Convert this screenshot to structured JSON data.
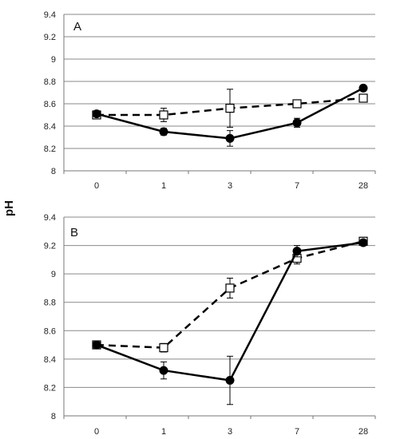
{
  "ylabel": "pH",
  "chart_data": [
    {
      "type": "line",
      "panel_label": "A",
      "categories": [
        "0",
        "1",
        "3",
        "7",
        "28"
      ],
      "ylim": [
        8,
        9.4
      ],
      "yticks": [
        "8",
        "8.2",
        "8.4",
        "8.6",
        "8.8",
        "9",
        "9.2",
        "9.4"
      ],
      "grid": true,
      "series": [
        {
          "marker": "filled-circle",
          "line": "solid",
          "values": [
            8.51,
            8.35,
            8.29,
            8.43,
            8.74
          ],
          "errors": [
            0.02,
            0.03,
            0.07,
            0.04,
            0.02
          ]
        },
        {
          "marker": "open-square",
          "line": "dashed",
          "values": [
            8.5,
            8.5,
            8.56,
            8.6,
            8.65
          ],
          "errors": [
            0.02,
            0.06,
            0.17,
            0.03,
            0.02
          ]
        }
      ]
    },
    {
      "type": "line",
      "panel_label": "B",
      "categories": [
        "0",
        "1",
        "3",
        "7",
        "28"
      ],
      "ylim": [
        8,
        9.4
      ],
      "yticks": [
        "8",
        "8.2",
        "8.4",
        "8.6",
        "8.8",
        "9",
        "9.2",
        "9.4"
      ],
      "grid": true,
      "series": [
        {
          "marker": "filled-circle",
          "line": "solid",
          "values": [
            8.5,
            8.32,
            8.25,
            9.16,
            9.22
          ],
          "errors": [
            0.01,
            0.06,
            0.17,
            0.04,
            0.02
          ]
        },
        {
          "marker": "open-square",
          "line": "dashed",
          "values": [
            8.5,
            8.48,
            8.9,
            9.11,
            9.23
          ],
          "errors": [
            0.01,
            0.03,
            0.07,
            0.04,
            0.02
          ]
        }
      ]
    }
  ]
}
